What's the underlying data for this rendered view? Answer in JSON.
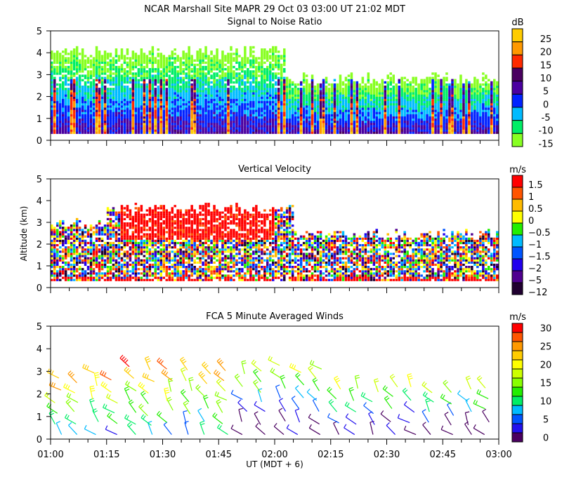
{
  "title": "NCAR Marshall Site  MAPR 29 Oct 03  03:00 UT  21:02  MDT",
  "chart_data": [
    {
      "type": "heatmap",
      "title": "Signal to Noise Ratio",
      "xlabel": "",
      "ylabel": "",
      "xlim_minutes_after_0100": [
        0,
        120
      ],
      "ylim": [
        0,
        5
      ],
      "yticks": [
        "0",
        "1",
        "2",
        "3",
        "4",
        "5"
      ],
      "colorbar_unit": "dB",
      "colorbar_labels": [
        "25",
        "20",
        "15",
        "10",
        "5",
        "0",
        "-5",
        "-10",
        "-15"
      ],
      "colorbar_colors": [
        "#ffcc00",
        "#ff9900",
        "#ff2a00",
        "#4a0060",
        "#4b00a0",
        "#0022ff",
        "#00bbff",
        "#00ee66",
        "#88ff22"
      ],
      "echo_top_km": {
        "before_0205": 4.0,
        "after_0205": 2.8
      }
    },
    {
      "type": "heatmap",
      "title": "Vertical Velocity",
      "ylabel": "Altitude (km)",
      "xlim_minutes_after_0100": [
        0,
        120
      ],
      "ylim": [
        0,
        5
      ],
      "yticks": [
        "0",
        "1",
        "2",
        "3",
        "4",
        "5"
      ],
      "colorbar_unit": "m/s",
      "colorbar_labels": [
        "1.5",
        "1",
        "0.5",
        "0",
        "−0.5",
        "−1",
        "−1.5",
        "−2",
        "−5",
        "−12"
      ],
      "colorbar_colors": [
        "#ff0000",
        "#ff5500",
        "#ffbb00",
        "#ffff00",
        "#22ee00",
        "#00bbff",
        "#0055ff",
        "#2200ee",
        "#500090",
        "#200030"
      ]
    },
    {
      "type": "scatter",
      "title": "FCA 5 Minute Averaged Winds",
      "xlabel": "UT  (MDT + 6)",
      "xlim_minutes_after_0100": [
        0,
        120
      ],
      "xticks": [
        "01:00",
        "01:15",
        "01:30",
        "01:45",
        "02:00",
        "02:15",
        "02:30",
        "02:45",
        "03:00"
      ],
      "ylim": [
        0,
        5
      ],
      "yticks": [
        "0",
        "1",
        "2",
        "3",
        "4",
        "5"
      ],
      "colorbar_unit": "m/s",
      "colorbar_labels": [
        "30",
        "25",
        "20",
        "15",
        "10",
        "5",
        "0"
      ],
      "colorbar_colors": [
        "#ff0000",
        "#ff5500",
        "#ff9900",
        "#ffcc00",
        "#ffff00",
        "#ccff00",
        "#88ff00",
        "#22ee00",
        "#00ee66",
        "#00bbff",
        "#0055ff",
        "#2211ee",
        "#4a0060"
      ],
      "wind_speed_range": [
        0,
        32
      ]
    }
  ]
}
